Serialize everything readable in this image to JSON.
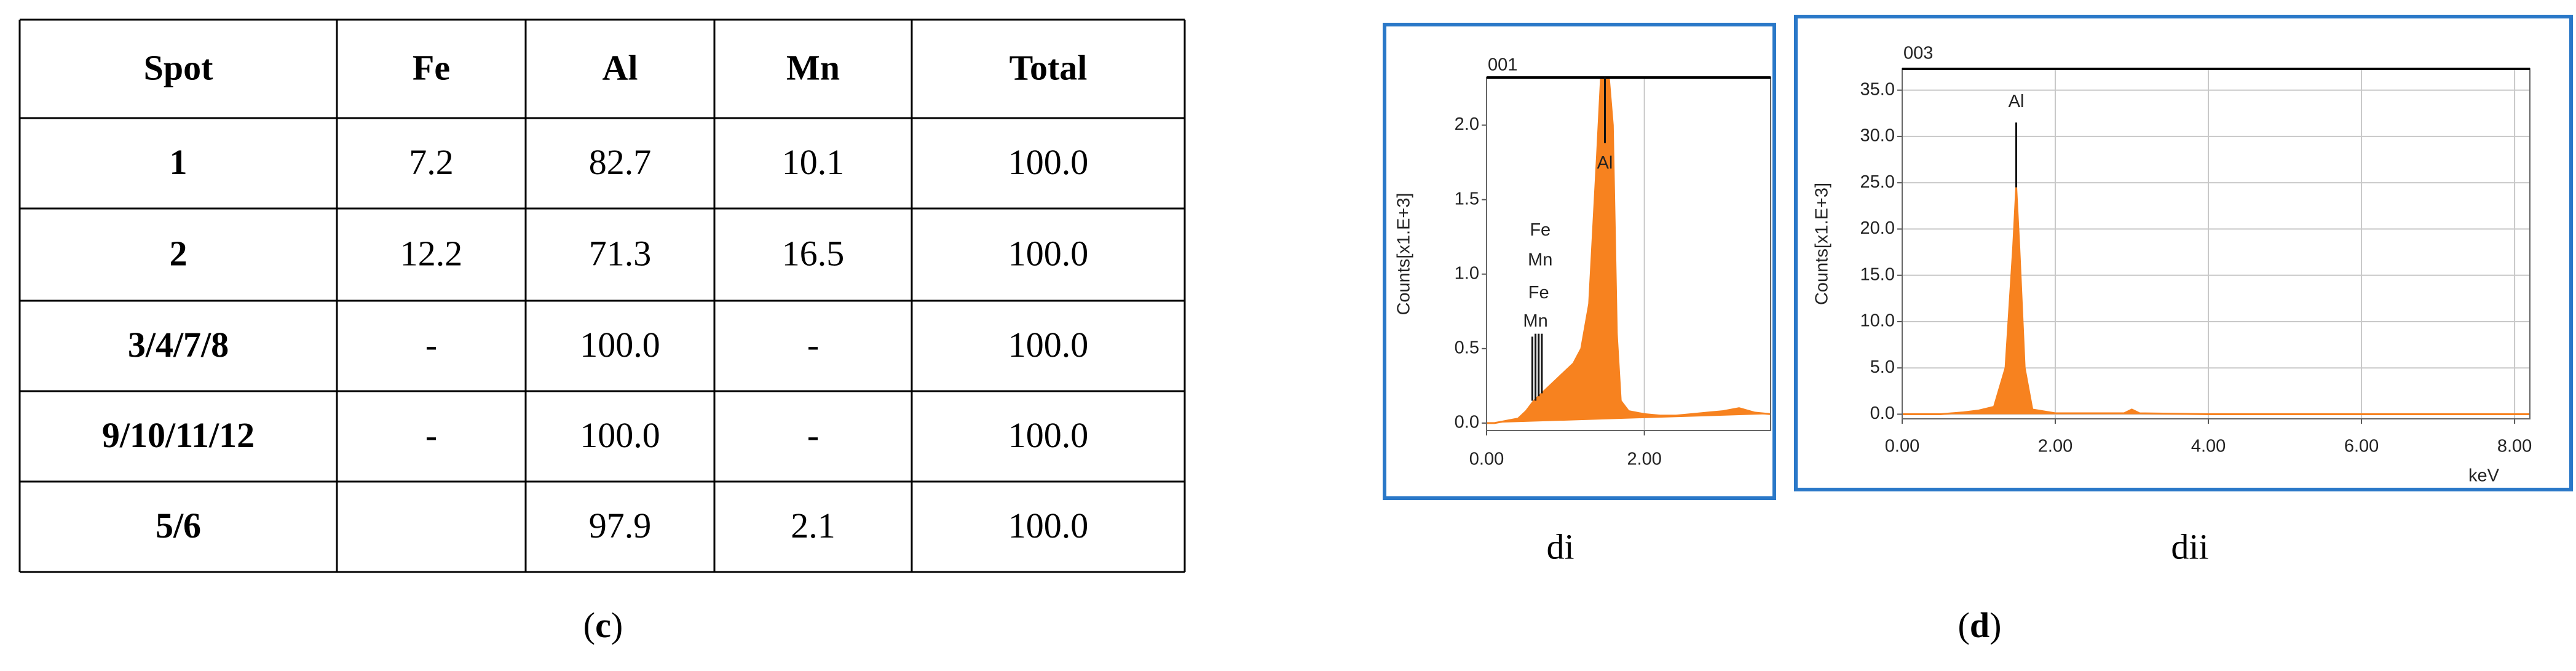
{
  "table": {
    "header": [
      "Spot",
      "Fe",
      "Al",
      "Mn",
      "Total"
    ],
    "rows": [
      [
        "1",
        "7.2",
        "82.7",
        "10.1",
        "100.0"
      ],
      [
        "2",
        "12.2",
        "71.3",
        "16.5",
        "100.0"
      ],
      [
        "3/4/7/8",
        "-",
        "100.0",
        "-",
        "100.0"
      ],
      [
        "9/10/11/12",
        "-",
        "100.0",
        "-",
        "100.0"
      ],
      [
        "5/6",
        null,
        "97.9",
        "2.1",
        "100.0"
      ]
    ],
    "caption": [
      "(",
      "c",
      ")"
    ]
  },
  "figure_caption": [
    "(",
    "d",
    ")"
  ],
  "chart_data": [
    {
      "type": "area",
      "title": "001",
      "caption": "di",
      "y_label": "Counts[x1.E+3]",
      "color": "#f7821f",
      "x": [
        0,
        0.1,
        0.2,
        0.3,
        0.4,
        0.5,
        0.6,
        0.7,
        0.8,
        0.9,
        1.0,
        1.1,
        1.2,
        1.3,
        1.4,
        1.45,
        1.5,
        1.55,
        1.6,
        1.65,
        1.7,
        1.8,
        2.0,
        2.2,
        2.4,
        2.6,
        2.8,
        3.0,
        3.2,
        3.4,
        3.6
      ],
      "values": [
        0,
        0,
        0.01,
        0.02,
        0.03,
        0.08,
        0.15,
        0.2,
        0.25,
        0.3,
        0.35,
        0.4,
        0.5,
        0.8,
        1.8,
        2.32,
        2.32,
        2.32,
        2.0,
        0.6,
        0.15,
        0.08,
        0.06,
        0.05,
        0.05,
        0.06,
        0.07,
        0.08,
        0.1,
        0.07,
        0.06
      ],
      "xlim": [
        0,
        3.6
      ],
      "ylim": [
        -0.05,
        2.32
      ],
      "xticks": [
        {
          "value": 0,
          "label": "0.00"
        },
        {
          "value": 2,
          "label": "2.00"
        }
      ],
      "yticks": [
        {
          "value": 0,
          "label": "0.0"
        },
        {
          "value": 0.5,
          "label": "0.5"
        },
        {
          "value": 1,
          "label": "1.0"
        },
        {
          "value": 1.5,
          "label": "1.5"
        },
        {
          "value": 2,
          "label": "2.0"
        }
      ],
      "grid": "x",
      "annotations": [
        {
          "text": "Al",
          "x": 1.5,
          "y": 1.74
        },
        {
          "text": "Fe",
          "x": 0.68,
          "y": 1.29
        },
        {
          "text": "Mn",
          "x": 0.68,
          "y": 1.09
        },
        {
          "text": "Fe",
          "x": 0.66,
          "y": 0.87
        },
        {
          "text": "Mn",
          "x": 0.62,
          "y": 0.68
        }
      ],
      "peak_lines": [
        {
          "x": 1.5,
          "y": [
            1.88,
            2.32
          ]
        },
        {
          "x": 0.58,
          "y": [
            0.15,
            0.58
          ]
        },
        {
          "x": 0.62,
          "y": [
            0.15,
            0.6
          ]
        },
        {
          "x": 0.66,
          "y": [
            0.18,
            0.6
          ]
        },
        {
          "x": 0.7,
          "y": [
            0.2,
            0.6
          ]
        }
      ]
    },
    {
      "type": "area",
      "title": "003",
      "caption": "dii",
      "y_label": "Counts[x1.E+3]",
      "x_label": "keV",
      "color": "#f7821f",
      "x": [
        0,
        0.5,
        0.8,
        1.0,
        1.2,
        1.35,
        1.45,
        1.49,
        1.53,
        1.6,
        1.7,
        2.0,
        2.9,
        3.0,
        3.1,
        4.0,
        6.0,
        8.2
      ],
      "values": [
        0,
        0,
        0.2,
        0.4,
        0.8,
        5,
        18,
        24.5,
        18,
        5,
        0.5,
        0.1,
        0.1,
        0.5,
        0.1,
        0,
        0,
        0
      ],
      "xlim": [
        0,
        8.2
      ],
      "ylim": [
        -0.5,
        37.3
      ],
      "xticks": [
        {
          "value": 0,
          "label": "0.00"
        },
        {
          "value": 2,
          "label": "2.00"
        },
        {
          "value": 4,
          "label": "4.00"
        },
        {
          "value": 6,
          "label": "6.00"
        },
        {
          "value": 8,
          "label": "8.00"
        }
      ],
      "yticks": [
        {
          "value": 0,
          "label": "0.0"
        },
        {
          "value": 5,
          "label": "5.0"
        },
        {
          "value": 10,
          "label": "10.0"
        },
        {
          "value": 15,
          "label": "15.0"
        },
        {
          "value": 20,
          "label": "20.0"
        },
        {
          "value": 25,
          "label": "25.0"
        },
        {
          "value": 30,
          "label": "30.0"
        },
        {
          "value": 35,
          "label": "35.0"
        }
      ],
      "grid": "both",
      "annotations": [
        {
          "text": "Al",
          "x": 1.49,
          "y": 33.7
        }
      ],
      "peak_lines": [
        {
          "x": 1.49,
          "y": [
            24.5,
            31.5
          ]
        }
      ]
    }
  ]
}
